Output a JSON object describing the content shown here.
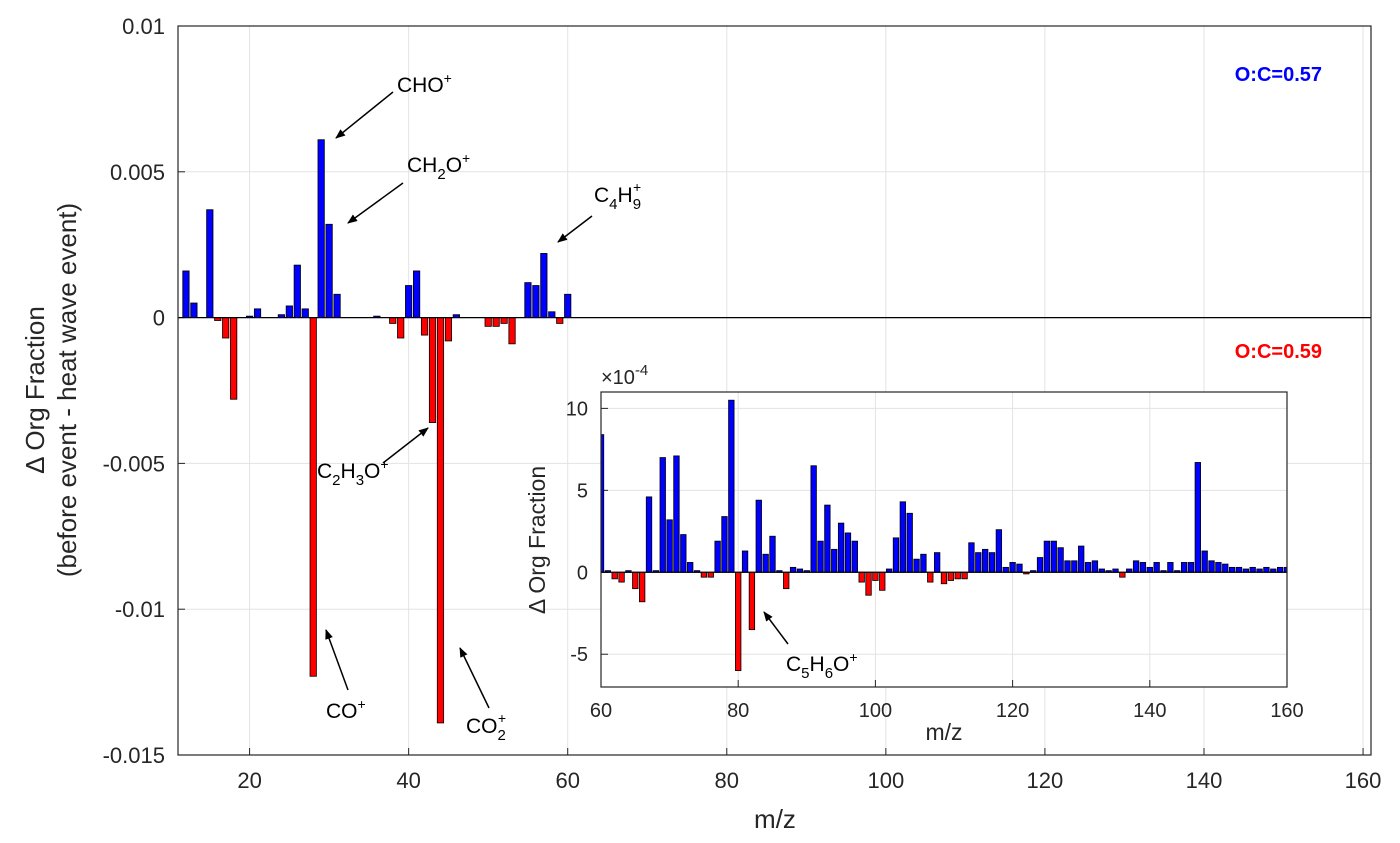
{
  "chart_data": [
    {
      "type": "bar",
      "xlabel": "m/z",
      "ylabel_line1": "Δ Org Fraction",
      "ylabel_line2": "(before event - heat wave event)",
      "xlim": [
        11,
        161
      ],
      "ylim": [
        -0.015,
        0.01
      ],
      "x_ticks": [
        20,
        40,
        60,
        80,
        100,
        120,
        140,
        160
      ],
      "x_tick_labels": [
        "20",
        "40",
        "60",
        "80",
        "100",
        "120",
        "140",
        "160"
      ],
      "y_ticks": [
        0.01,
        0.005,
        0,
        -0.005,
        -0.01,
        -0.015
      ],
      "y_tick_labels": [
        "0.01",
        "0.005",
        "0",
        "-0.005",
        "-0.01",
        "-0.015"
      ],
      "grid": true,
      "colors": {
        "positive": "#0000ff",
        "negative": "#ff0000"
      },
      "ratio_labels": [
        {
          "text": "O:C=0.57",
          "color": "#0000ff"
        },
        {
          "text": "O:C=0.59",
          "color": "#ff0000"
        }
      ],
      "x": [
        12,
        13,
        15,
        16,
        17,
        18,
        20,
        21,
        24,
        25,
        26,
        27,
        28,
        29,
        30,
        31,
        36,
        38,
        39,
        40,
        41,
        42,
        43,
        44,
        45,
        46,
        50,
        51,
        52,
        53,
        55,
        56,
        57,
        58,
        59,
        60
      ],
      "values": [
        0.0016,
        0.0005,
        0.0037,
        -0.0001,
        -0.0007,
        -0.0028,
        5e-05,
        0.0003,
        0.0001,
        0.0004,
        0.0018,
        0.0003,
        -0.0123,
        0.0061,
        0.0032,
        0.0008,
        5e-05,
        -0.0002,
        -0.0007,
        0.0011,
        0.0016,
        -0.0006,
        -0.0036,
        -0.0139,
        -0.0008,
        0.0001,
        -0.0003,
        -0.0003,
        -0.0002,
        -0.0009,
        0.0012,
        0.0011,
        0.0022,
        0.0002,
        -0.0002,
        0.0008
      ],
      "annotations": [
        {
          "base": "CHO",
          "sub": "",
          "base2": "",
          "sup": "+"
        },
        {
          "base": "CH",
          "sub": "2",
          "base2": "O",
          "sup": "+"
        },
        {
          "base": "C",
          "sub": "4",
          "base2": "H",
          "sub2": "9",
          "sup": "+"
        },
        {
          "base": "C",
          "sub": "2",
          "base2": "H",
          "sub2": "3",
          "base3": "O",
          "sup": "+"
        },
        {
          "base": "CO",
          "sub": "",
          "base2": "",
          "sup": "+"
        },
        {
          "base": "CO",
          "sub": "2",
          "base2": "",
          "sup": "+"
        }
      ]
    },
    {
      "type": "bar",
      "xlabel": "m/z",
      "ylabel": "Δ Org Fraction",
      "scale_label": "×10",
      "scale_exponent": "-4",
      "xlim": [
        60,
        160
      ],
      "ylim": [
        -7,
        11
      ],
      "x_ticks": [
        60,
        80,
        100,
        120,
        140,
        160
      ],
      "x_tick_labels": [
        "60",
        "80",
        "100",
        "120",
        "140",
        "160"
      ],
      "y_ticks": [
        10,
        5,
        0,
        -5
      ],
      "y_tick_labels": [
        "10",
        "5",
        "0",
        "-5"
      ],
      "grid": true,
      "x": [
        60,
        61,
        62,
        63,
        64,
        65,
        66,
        67,
        68,
        69,
        70,
        71,
        72,
        73,
        74,
        75,
        76,
        77,
        78,
        79,
        80,
        81,
        82,
        83,
        84,
        85,
        86,
        87,
        88,
        89,
        90,
        91,
        92,
        93,
        94,
        95,
        96,
        97,
        98,
        99,
        100,
        101,
        102,
        103,
        104,
        105,
        106,
        107,
        108,
        109,
        110,
        111,
        112,
        113,
        114,
        115,
        116,
        117,
        118,
        119,
        120,
        121,
        122,
        123,
        124,
        125,
        126,
        127,
        128,
        129,
        130,
        131,
        132,
        133,
        134,
        135,
        136,
        137,
        138,
        139,
        140,
        141,
        142,
        143,
        144,
        145,
        146,
        147,
        148,
        149,
        150,
        151,
        152,
        153,
        154,
        155,
        156,
        157,
        158,
        159,
        160
      ],
      "values": [
        8.4,
        0.1,
        -0.4,
        -0.6,
        0.1,
        -1.0,
        -1.8,
        4.6,
        0.1,
        7.0,
        3.2,
        7.1,
        2.3,
        0.6,
        0.1,
        -0.3,
        -0.3,
        1.9,
        3.4,
        10.5,
        -6.0,
        1.3,
        -3.5,
        4.4,
        1.1,
        2.2,
        0.1,
        -1.0,
        0.3,
        0.2,
        0.1,
        6.5,
        1.9,
        4.1,
        1.4,
        3.0,
        2.4,
        1.9,
        -0.6,
        -1.4,
        -0.5,
        -1.1,
        0.2,
        2.1,
        4.3,
        3.6,
        0.8,
        1.1,
        -0.6,
        1.2,
        -0.7,
        -0.5,
        -0.4,
        -0.4,
        1.8,
        1.2,
        1.4,
        1.2,
        2.6,
        0.3,
        0.6,
        0.5,
        -0.1,
        0.1,
        0.9,
        1.9,
        1.9,
        1.5,
        0.7,
        0.7,
        1.6,
        0.6,
        0.7,
        0.2,
        0.1,
        0.2,
        -0.3,
        0.2,
        0.7,
        0.6,
        0.3,
        0.6,
        0.1,
        0.6,
        0.1,
        0.6,
        0.6,
        6.7,
        1.3,
        0.7,
        0.6,
        0.5,
        0.3,
        0.3,
        0.2,
        0.3,
        0.2,
        0.3,
        0.2,
        0.3,
        0.3
      ],
      "annotations": [
        {
          "base": "C",
          "sub": "5",
          "base2": "H",
          "sub2": "6",
          "base3": "O",
          "sup": "+"
        }
      ]
    }
  ]
}
